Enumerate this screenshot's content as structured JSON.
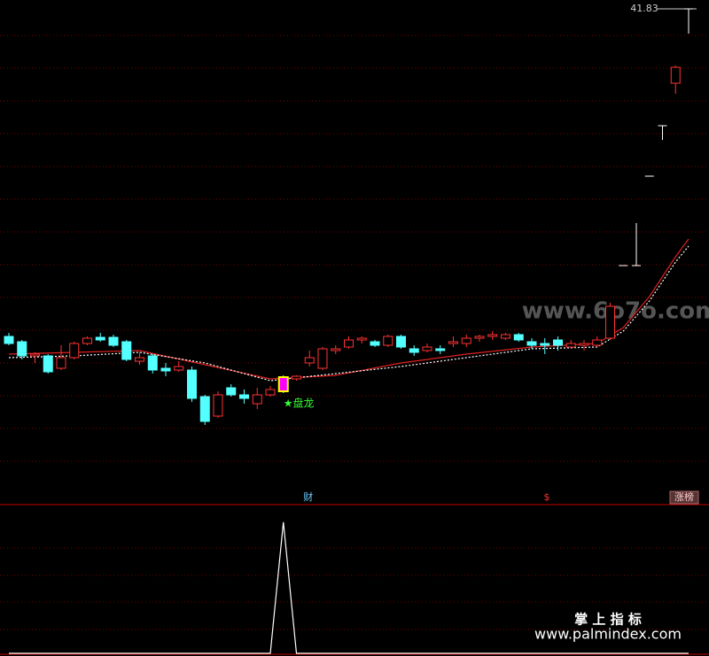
{
  "chart_data": {
    "type": "candlestick",
    "price_label": "41.83",
    "ylim": [
      13.83,
      42.33
    ],
    "up_color": "#ff3232",
    "down_color": "#54ffff",
    "flat_color": "#ffffff",
    "signal_color": "#ff00ff",
    "candles": [
      {
        "o": 23.33,
        "h": 23.53,
        "l": 22.83,
        "c": 22.93
      },
      {
        "o": 23.03,
        "h": 23.13,
        "l": 22.03,
        "c": 22.23
      },
      {
        "o": 22.23,
        "h": 22.43,
        "l": 21.83,
        "c": 22.33
      },
      {
        "o": 22.23,
        "h": 22.33,
        "l": 21.23,
        "c": 21.33
      },
      {
        "o": 21.53,
        "h": 22.83,
        "l": 21.43,
        "c": 22.13
      },
      {
        "o": 22.13,
        "h": 23.03,
        "l": 22.03,
        "c": 22.93
      },
      {
        "o": 22.93,
        "h": 23.33,
        "l": 22.83,
        "c": 23.23
      },
      {
        "o": 23.28,
        "h": 23.53,
        "l": 23.03,
        "c": 23.13
      },
      {
        "o": 23.28,
        "h": 23.43,
        "l": 22.73,
        "c": 22.83
      },
      {
        "o": 23.03,
        "h": 23.13,
        "l": 21.93,
        "c": 22.03
      },
      {
        "o": 21.93,
        "h": 22.43,
        "l": 21.73,
        "c": 22.13
      },
      {
        "o": 22.23,
        "h": 22.33,
        "l": 21.23,
        "c": 21.43
      },
      {
        "o": 21.53,
        "h": 21.83,
        "l": 21.08,
        "c": 21.38
      },
      {
        "o": 21.43,
        "h": 21.93,
        "l": 21.33,
        "c": 21.63
      },
      {
        "o": 21.43,
        "h": 21.63,
        "l": 19.63,
        "c": 19.83
      },
      {
        "o": 19.93,
        "h": 20.03,
        "l": 18.33,
        "c": 18.53
      },
      {
        "o": 18.83,
        "h": 20.23,
        "l": 18.73,
        "c": 20.03
      },
      {
        "o": 20.43,
        "h": 20.63,
        "l": 19.93,
        "c": 20.03
      },
      {
        "o": 20.03,
        "h": 20.33,
        "l": 19.53,
        "c": 19.83
      },
      {
        "o": 19.53,
        "h": 20.43,
        "l": 19.23,
        "c": 20.03
      },
      {
        "o": 20.03,
        "h": 20.53,
        "l": 19.93,
        "c": 20.33
      },
      {
        "o": 20.23,
        "h": 21.13,
        "l": 20.13,
        "c": 21.03
      },
      {
        "o": 20.93,
        "h": 21.13,
        "l": 20.83,
        "c": 21.08
      },
      {
        "o": 21.83,
        "h": 22.53,
        "l": 21.63,
        "c": 22.13
      },
      {
        "o": 21.53,
        "h": 22.73,
        "l": 21.43,
        "c": 22.63
      },
      {
        "o": 22.53,
        "h": 22.83,
        "l": 22.33,
        "c": 22.63
      },
      {
        "o": 22.73,
        "h": 23.33,
        "l": 22.63,
        "c": 23.13
      },
      {
        "o": 23.13,
        "h": 23.33,
        "l": 22.93,
        "c": 23.23
      },
      {
        "o": 23.03,
        "h": 23.13,
        "l": 22.73,
        "c": 22.83
      },
      {
        "o": 22.83,
        "h": 23.43,
        "l": 22.73,
        "c": 23.33
      },
      {
        "o": 23.33,
        "h": 23.43,
        "l": 22.63,
        "c": 22.73
      },
      {
        "o": 22.63,
        "h": 22.83,
        "l": 22.23,
        "c": 22.43
      },
      {
        "o": 22.53,
        "h": 22.93,
        "l": 22.43,
        "c": 22.73
      },
      {
        "o": 22.63,
        "h": 22.83,
        "l": 22.33,
        "c": 22.53
      },
      {
        "o": 22.93,
        "h": 23.33,
        "l": 22.73,
        "c": 23.03
      },
      {
        "o": 22.93,
        "h": 23.43,
        "l": 22.73,
        "c": 23.23
      },
      {
        "o": 23.23,
        "h": 23.43,
        "l": 23.03,
        "c": 23.33
      },
      {
        "o": 23.33,
        "h": 23.63,
        "l": 23.13,
        "c": 23.43
      },
      {
        "o": 23.23,
        "h": 23.53,
        "l": 23.13,
        "c": 23.43
      },
      {
        "o": 23.43,
        "h": 23.53,
        "l": 23.03,
        "c": 23.13
      },
      {
        "o": 23.03,
        "h": 23.23,
        "l": 22.63,
        "c": 22.83
      },
      {
        "o": 22.93,
        "h": 23.23,
        "l": 22.33,
        "c": 22.83
      },
      {
        "o": 23.13,
        "h": 23.33,
        "l": 22.53,
        "c": 22.83
      },
      {
        "o": 22.73,
        "h": 23.13,
        "l": 22.63,
        "c": 22.93
      },
      {
        "o": 22.83,
        "h": 23.13,
        "l": 22.53,
        "c": 22.93
      },
      {
        "o": 22.83,
        "h": 23.33,
        "l": 22.73,
        "c": 23.13
      },
      {
        "o": 23.23,
        "h": 25.23,
        "l": 23.13,
        "c": 25.03
      },
      {
        "o": 27.33,
        "h": 27.33,
        "l": 27.33,
        "c": 27.33
      },
      {
        "o": 27.33,
        "h": 29.73,
        "l": 27.33,
        "c": 27.33
      },
      {
        "o": 32.38,
        "h": 32.38,
        "l": 32.38,
        "c": 32.38
      },
      {
        "o": 35.23,
        "h": 35.23,
        "l": 34.43,
        "c": 35.23
      },
      {
        "o": 37.63,
        "h": 38.63,
        "l": 37.03,
        "c": 38.53
      },
      {
        "o": 41.83,
        "h": 41.83,
        "l": 40.43,
        "c": 41.83
      }
    ],
    "signal": {
      "text": "★盘龙",
      "at": 21
    },
    "lines": [
      {
        "color": "#e02020",
        "dashed": false,
        "x": [
          0,
          5,
          10,
          15,
          20,
          25,
          30,
          35,
          40,
          45,
          47,
          49,
          51,
          52
        ],
        "values": [
          22.33,
          22.43,
          22.53,
          21.73,
          20.93,
          21.13,
          21.83,
          22.33,
          22.73,
          22.93,
          23.83,
          25.58,
          27.83,
          28.83
        ]
      },
      {
        "color": "#ffffff",
        "dashed": true,
        "x": [
          0,
          5,
          10,
          15,
          20,
          25,
          30,
          35,
          40,
          45,
          47,
          49,
          51,
          52
        ],
        "values": [
          22.13,
          22.23,
          22.43,
          21.83,
          20.83,
          21.23,
          21.63,
          22.13,
          22.63,
          22.73,
          23.63,
          25.33,
          27.53,
          28.43
        ]
      }
    ],
    "markers": [
      {
        "text": "财",
        "color": "#66ccff"
      },
      {
        "text": "$",
        "color": "#ff3232"
      },
      {
        "text": "涨榜",
        "color": "#ffcccc"
      }
    ],
    "indicator": {
      "color": "#ffffff",
      "x": [
        0,
        20,
        21,
        22,
        52
      ],
      "values": [
        0,
        0,
        1,
        0,
        0
      ],
      "ylim": [
        0,
        1.12
      ]
    }
  },
  "watermarks": [
    "www.6o7o.com",
    "掌 上 指 标",
    "www.palmindex.com"
  ]
}
